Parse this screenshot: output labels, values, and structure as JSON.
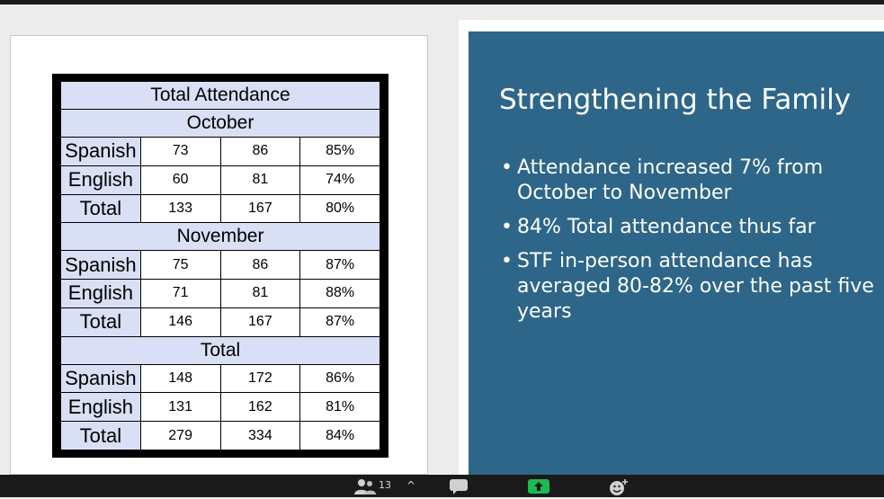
{
  "table": {
    "title": "Total Attendance",
    "sections": [
      {
        "name": "October",
        "rows": [
          {
            "label": "Spanish",
            "values": [
              "73",
              "86",
              "85%"
            ]
          },
          {
            "label": "English",
            "values": [
              "60",
              "81",
              "74%"
            ]
          },
          {
            "label": "Total",
            "values": [
              "133",
              "167",
              "80%"
            ]
          }
        ]
      },
      {
        "name": "November",
        "rows": [
          {
            "label": "Spanish",
            "values": [
              "75",
              "86",
              "87%"
            ]
          },
          {
            "label": "English",
            "values": [
              "71",
              "81",
              "88%"
            ]
          },
          {
            "label": "Total",
            "values": [
              "146",
              "167",
              "87%"
            ]
          }
        ]
      },
      {
        "name": "Total",
        "rows": [
          {
            "label": "Spanish",
            "values": [
              "148",
              "172",
              "86%"
            ]
          },
          {
            "label": "English",
            "values": [
              "131",
              "162",
              "81%"
            ]
          },
          {
            "label": "Total",
            "values": [
              "279",
              "334",
              "84%"
            ]
          }
        ]
      }
    ]
  },
  "slide": {
    "title": "Strengthening the Family",
    "bullets": [
      "Attendance increased 7% from October to November",
      "84% Total attendance thus far",
      "STF in-person attendance has averaged 80-82% over the past five years"
    ],
    "bullet_glyph": "•"
  },
  "toolbar": {
    "participants_count": "13",
    "chevron": "^",
    "icons": [
      "participants-icon",
      "chevron-up-icon",
      "chat-icon",
      "share-screen-icon",
      "reactions-icon"
    ]
  },
  "colors": {
    "slide_blue": "#2d6688",
    "table_header_fill": "#d9dff4",
    "share_green": "#1db954"
  }
}
